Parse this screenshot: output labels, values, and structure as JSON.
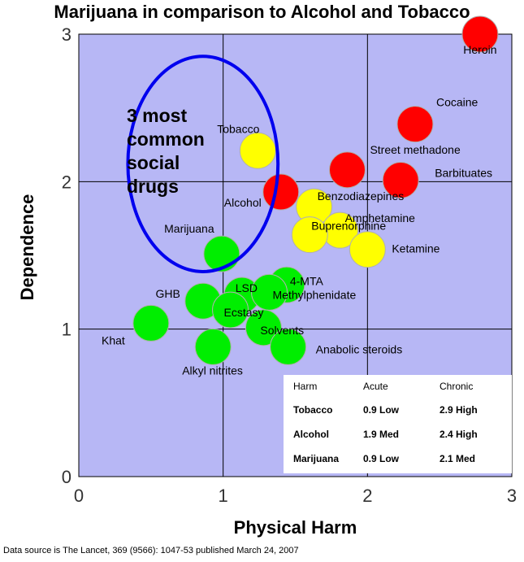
{
  "chart_data": {
    "type": "scatter",
    "title": "Marijuana in comparison to Alcohol and Tobacco",
    "xlabel": "Physical Harm",
    "ylabel": "Dependence",
    "xlim": [
      0,
      3
    ],
    "ylim": [
      0,
      3
    ],
    "xticks": [
      "0",
      "1",
      "2",
      "3"
    ],
    "yticks": [
      "0",
      "1",
      "2",
      "3"
    ],
    "grid": true,
    "plot_background": "#b7b7f5",
    "colors": {
      "red": "#ff0000",
      "yellow": "#ffff00",
      "green": "#00ee00"
    },
    "points": [
      {
        "label": "Heroin",
        "x": 2.78,
        "y": 3.0,
        "color": "red"
      },
      {
        "label": "Cocaine",
        "x": 2.33,
        "y": 2.39,
        "color": "red"
      },
      {
        "label": "Street methadone",
        "x": 1.86,
        "y": 2.08,
        "color": "red"
      },
      {
        "label": "Barbituates",
        "x": 2.23,
        "y": 2.01,
        "color": "red"
      },
      {
        "label": "Alcohol",
        "x": 1.4,
        "y": 1.93,
        "color": "red"
      },
      {
        "label": "Tobacco",
        "x": 1.24,
        "y": 2.21,
        "color": "yellow"
      },
      {
        "label": "Benzodiazepines",
        "x": 1.63,
        "y": 1.83,
        "color": "yellow"
      },
      {
        "label": "Amphetamine",
        "x": 1.81,
        "y": 1.67,
        "color": "yellow"
      },
      {
        "label": "Buprenorphine",
        "x": 1.6,
        "y": 1.64,
        "color": "yellow"
      },
      {
        "label": "Ketamine",
        "x": 2.0,
        "y": 1.54,
        "color": "yellow"
      },
      {
        "label": "Marijuana",
        "x": 0.99,
        "y": 1.51,
        "color": "green"
      },
      {
        "label": "4-MTA",
        "x": 1.44,
        "y": 1.3,
        "color": "green"
      },
      {
        "label": "LSD",
        "x": 1.13,
        "y": 1.23,
        "color": "green"
      },
      {
        "label": "Methylphenidate",
        "x": 1.32,
        "y": 1.25,
        "color": "green"
      },
      {
        "label": "GHB",
        "x": 0.86,
        "y": 1.19,
        "color": "green"
      },
      {
        "label": "Ecstasy",
        "x": 1.05,
        "y": 1.13,
        "color": "green"
      },
      {
        "label": "Khat",
        "x": 0.5,
        "y": 1.04,
        "color": "green"
      },
      {
        "label": "Solvents",
        "x": 1.28,
        "y": 1.01,
        "color": "green"
      },
      {
        "label": "Alkyl nitrites",
        "x": 0.93,
        "y": 0.88,
        "color": "green"
      },
      {
        "label": "Anabolic steroids",
        "x": 1.45,
        "y": 0.88,
        "color": "green"
      }
    ],
    "annotation": {
      "text_lines": [
        "3 most",
        "common",
        "social",
        "drugs"
      ],
      "shape": "ellipse",
      "color": "#0000ee",
      "center_x": 0.86,
      "center_y": 2.12,
      "radius_x": 0.52,
      "radius_y": 0.73
    },
    "table": {
      "headers": [
        "Harm",
        "Acute",
        "Chronic"
      ],
      "rows": [
        [
          "Tobacco",
          "0.9  Low",
          "2.9  High"
        ],
        [
          "Alcohol",
          "1.9  Med",
          "2.4  High"
        ],
        [
          "Marijuana",
          "0.9  Low",
          "2.1  Med"
        ]
      ]
    }
  },
  "source_note": "Data source is The Lancet, 369 (9566): 1047-53 published March 24, 2007"
}
